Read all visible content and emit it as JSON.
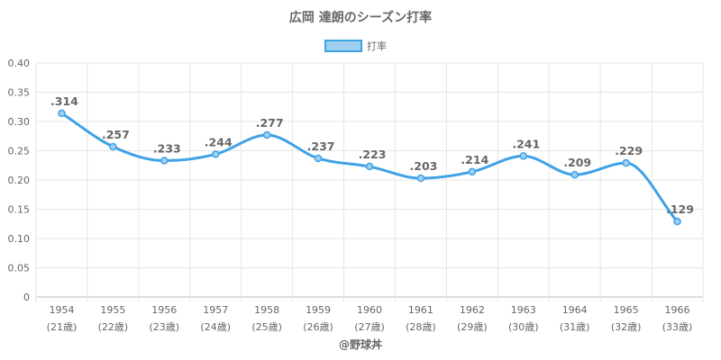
{
  "chart_data": {
    "type": "line",
    "title": "広岡 達朗のシーズン打率",
    "legend": {
      "label": "打率",
      "position": "top"
    },
    "credit": "@野球丼",
    "x": [
      "1954",
      "1955",
      "1956",
      "1957",
      "1958",
      "1959",
      "1960",
      "1961",
      "1962",
      "1963",
      "1964",
      "1965",
      "1966"
    ],
    "x_sublabels": [
      "(21歳)",
      "(22歳)",
      "(23歳)",
      "(24歳)",
      "(25歳)",
      "(26歳)",
      "(27歳)",
      "(28歳)",
      "(29歳)",
      "(30歳)",
      "(31歳)",
      "(32歳)",
      "(33歳)"
    ],
    "series": [
      {
        "name": "打率",
        "values": [
          0.314,
          0.257,
          0.233,
          0.244,
          0.277,
          0.237,
          0.223,
          0.203,
          0.214,
          0.241,
          0.209,
          0.229,
          0.129
        ],
        "data_labels": [
          ".314",
          ".257",
          ".233",
          ".244",
          ".277",
          ".237",
          ".223",
          ".203",
          ".214",
          ".241",
          ".209",
          ".229",
          ".129"
        ]
      }
    ],
    "ylim": [
      0,
      0.4
    ],
    "yticks": [
      "0",
      "0.05",
      "0.10",
      "0.15",
      "0.20",
      "0.25",
      "0.30",
      "0.35",
      "0.40"
    ],
    "ytick_values": [
      0,
      0.05,
      0.1,
      0.15,
      0.2,
      0.25,
      0.3,
      0.35,
      0.4
    ],
    "grid": true,
    "colors": {
      "line": "#3fa2e5",
      "legend_fill": "#9fd0f2",
      "grid": "#e6e6e6",
      "text": "#666666"
    }
  }
}
